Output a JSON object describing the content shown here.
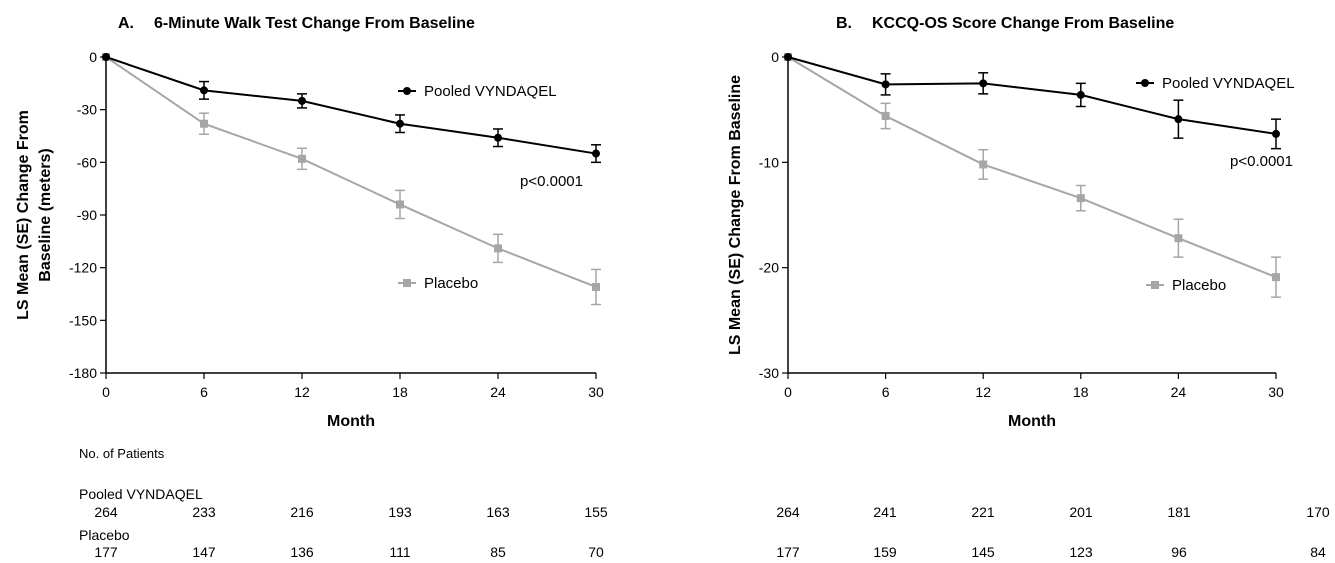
{
  "chart_data": [
    {
      "type": "line",
      "panel_label": "A.",
      "title": "6-Minute Walk Test  Change From Baseline",
      "xlabel": "Month",
      "ylabel_lines": [
        "LS Mean (SE) Change From",
        "Baseline (meters)"
      ],
      "x": [
        0,
        6,
        12,
        18,
        24,
        30
      ],
      "xlim": [
        0,
        30
      ],
      "ylim": [
        -180,
        0
      ],
      "xticks": [
        0,
        6,
        12,
        18,
        24,
        30
      ],
      "yticks": [
        0,
        -30,
        -60,
        -90,
        -120,
        -150,
        -180
      ],
      "grid": false,
      "annotation": "p<0.0001",
      "series": [
        {
          "name": "Pooled VYNDAQEL",
          "color": "#000000",
          "marker": "circle",
          "values": [
            0,
            -19,
            -25,
            -38,
            -46,
            -55
          ],
          "errors": [
            0,
            5,
            4,
            5,
            5,
            5
          ]
        },
        {
          "name": "Placebo",
          "color": "#a6a6a6",
          "marker": "square",
          "values": [
            0,
            -38,
            -58,
            -84,
            -109,
            -131
          ],
          "errors": [
            0,
            6,
            6,
            8,
            8,
            10
          ]
        }
      ]
    },
    {
      "type": "line",
      "panel_label": "B.",
      "title": "KCCQ-OS Score Change From Baseline",
      "xlabel": "Month",
      "ylabel_lines": [
        "LS Mean (SE) Change From Baseline"
      ],
      "x": [
        0,
        6,
        12,
        18,
        24,
        30
      ],
      "xlim": [
        0,
        30
      ],
      "ylim": [
        -30,
        0
      ],
      "xticks": [
        0,
        6,
        12,
        18,
        24,
        30
      ],
      "yticks": [
        0,
        -10,
        -20,
        -30
      ],
      "grid": false,
      "annotation": "p<0.0001",
      "series": [
        {
          "name": "Pooled VYNDAQEL",
          "color": "#000000",
          "marker": "circle",
          "values": [
            0,
            -2.6,
            -2.5,
            -3.6,
            -5.9,
            -7.3
          ],
          "errors": [
            0,
            1.0,
            1.0,
            1.1,
            1.8,
            1.4
          ]
        },
        {
          "name": "Placebo",
          "color": "#a6a6a6",
          "marker": "square",
          "values": [
            0,
            -5.6,
            -10.2,
            -13.4,
            -17.2,
            -20.9
          ],
          "errors": [
            0,
            1.2,
            1.4,
            1.2,
            1.8,
            1.9
          ]
        }
      ]
    }
  ],
  "patients": {
    "header": "No. of Patients",
    "vyndaqel_label": "Pooled VYNDAQEL",
    "placebo_label": "Placebo",
    "panel_a": {
      "vyndaqel": [
        264,
        233,
        216,
        193,
        163,
        155
      ],
      "placebo": [
        177,
        147,
        136,
        111,
        85,
        70
      ]
    },
    "panel_b": {
      "vyndaqel": [
        264,
        241,
        221,
        201,
        181,
        170
      ],
      "placebo": [
        177,
        159,
        145,
        123,
        96,
        84
      ]
    }
  }
}
